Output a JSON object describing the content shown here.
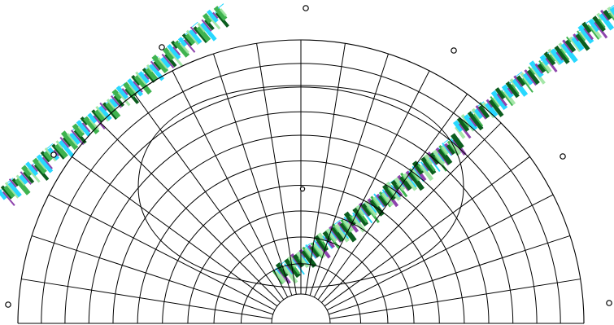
{
  "diagram": {
    "type": "polar-half-grid",
    "has_outer_arc": true,
    "has_inner_loop": true,
    "radial_rings": 10,
    "angular_spokes": 20,
    "control_handles": 8,
    "colors": {
      "background": "#ffffff",
      "lines": "#000000",
      "texture_dark": "#0b5d1e",
      "texture_mid": "#3fb34f",
      "texture_light": "#9be49f",
      "texture_cyan": "#28d8ff",
      "texture_violet": "#8e44ad"
    }
  }
}
